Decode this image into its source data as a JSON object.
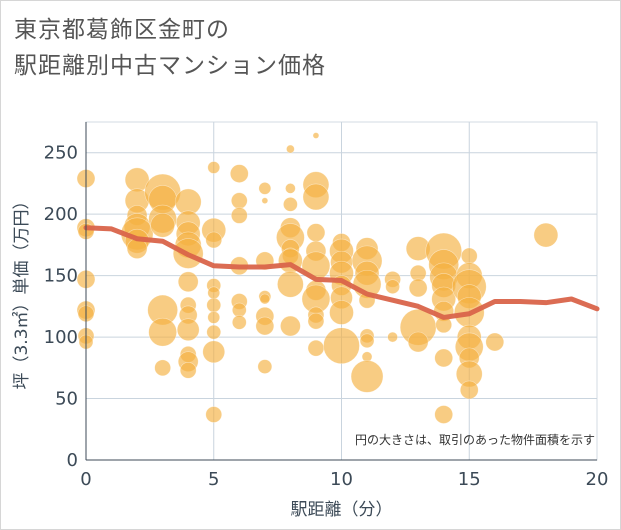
{
  "title_line1": "東京都葛飾区金町の",
  "title_line2": "駅距離別中古マンション価格",
  "chart_data": {
    "type": "scatter",
    "xlabel": "駅距離（分）",
    "ylabel": "坪（3.3㎡）単価（万円）",
    "xlim": [
      0,
      20
    ],
    "ylim": [
      0,
      275
    ],
    "xticks": [
      0,
      5,
      10,
      15,
      20
    ],
    "yticks": [
      0,
      50,
      100,
      150,
      200,
      250
    ],
    "grid": true,
    "annotation": "円の大きさは、取引のあった物件面積を示す",
    "bubble_color": "#f5b041",
    "line_color": "#d9644a",
    "points": [
      {
        "x": 0,
        "y": 229,
        "s": 9
      },
      {
        "x": 0,
        "y": 189,
        "s": 9
      },
      {
        "x": 0,
        "y": 186,
        "s": 8
      },
      {
        "x": 0,
        "y": 147,
        "s": 9
      },
      {
        "x": 0,
        "y": 122,
        "s": 9
      },
      {
        "x": 0,
        "y": 119,
        "s": 8
      },
      {
        "x": 0,
        "y": 101,
        "s": 8
      },
      {
        "x": 0,
        "y": 96,
        "s": 7
      },
      {
        "x": 2,
        "y": 228,
        "s": 12
      },
      {
        "x": 2,
        "y": 211,
        "s": 12
      },
      {
        "x": 2,
        "y": 199,
        "s": 10
      },
      {
        "x": 2,
        "y": 190,
        "s": 13
      },
      {
        "x": 2,
        "y": 184,
        "s": 16
      },
      {
        "x": 2,
        "y": 178,
        "s": 12
      },
      {
        "x": 2,
        "y": 172,
        "s": 10
      },
      {
        "x": 3,
        "y": 218,
        "s": 18
      },
      {
        "x": 3,
        "y": 212,
        "s": 14
      },
      {
        "x": 3,
        "y": 196,
        "s": 14
      },
      {
        "x": 3,
        "y": 191,
        "s": 12
      },
      {
        "x": 3,
        "y": 122,
        "s": 15
      },
      {
        "x": 3,
        "y": 104,
        "s": 14
      },
      {
        "x": 3,
        "y": 75,
        "s": 8
      },
      {
        "x": 4,
        "y": 210,
        "s": 13
      },
      {
        "x": 4,
        "y": 193,
        "s": 12
      },
      {
        "x": 4,
        "y": 184,
        "s": 12
      },
      {
        "x": 4,
        "y": 175,
        "s": 13
      },
      {
        "x": 4,
        "y": 168,
        "s": 15
      },
      {
        "x": 4,
        "y": 145,
        "s": 10
      },
      {
        "x": 4,
        "y": 126,
        "s": 8
      },
      {
        "x": 4,
        "y": 118,
        "s": 9
      },
      {
        "x": 4,
        "y": 106,
        "s": 11
      },
      {
        "x": 4,
        "y": 86,
        "s": 8
      },
      {
        "x": 4,
        "y": 80,
        "s": 10
      },
      {
        "x": 4,
        "y": 73,
        "s": 8
      },
      {
        "x": 5,
        "y": 238,
        "s": 6
      },
      {
        "x": 5,
        "y": 187,
        "s": 12
      },
      {
        "x": 5,
        "y": 179,
        "s": 8
      },
      {
        "x": 5,
        "y": 142,
        "s": 7
      },
      {
        "x": 5,
        "y": 136,
        "s": 6
      },
      {
        "x": 5,
        "y": 126,
        "s": 7
      },
      {
        "x": 5,
        "y": 116,
        "s": 6
      },
      {
        "x": 5,
        "y": 104,
        "s": 7
      },
      {
        "x": 5,
        "y": 88,
        "s": 11
      },
      {
        "x": 5,
        "y": 37,
        "s": 8
      },
      {
        "x": 6,
        "y": 233,
        "s": 9
      },
      {
        "x": 6,
        "y": 211,
        "s": 8
      },
      {
        "x": 6,
        "y": 199,
        "s": 8
      },
      {
        "x": 6,
        "y": 158,
        "s": 9
      },
      {
        "x": 6,
        "y": 129,
        "s": 8
      },
      {
        "x": 6,
        "y": 122,
        "s": 7
      },
      {
        "x": 6,
        "y": 112,
        "s": 7
      },
      {
        "x": 7,
        "y": 221,
        "s": 6
      },
      {
        "x": 7,
        "y": 211,
        "s": 3
      },
      {
        "x": 7,
        "y": 162,
        "s": 9
      },
      {
        "x": 7,
        "y": 133,
        "s": 6
      },
      {
        "x": 7,
        "y": 131,
        "s": 5
      },
      {
        "x": 7,
        "y": 117,
        "s": 9
      },
      {
        "x": 7,
        "y": 109,
        "s": 9
      },
      {
        "x": 7,
        "y": 76,
        "s": 7
      },
      {
        "x": 8,
        "y": 253,
        "s": 4
      },
      {
        "x": 8,
        "y": 221,
        "s": 5
      },
      {
        "x": 8,
        "y": 208,
        "s": 7
      },
      {
        "x": 8,
        "y": 189,
        "s": 10
      },
      {
        "x": 8,
        "y": 181,
        "s": 14
      },
      {
        "x": 8,
        "y": 172,
        "s": 9
      },
      {
        "x": 8,
        "y": 166,
        "s": 8
      },
      {
        "x": 8,
        "y": 162,
        "s": 12
      },
      {
        "x": 8,
        "y": 143,
        "s": 13
      },
      {
        "x": 8,
        "y": 109,
        "s": 10
      },
      {
        "x": 9,
        "y": 264,
        "s": 3
      },
      {
        "x": 9,
        "y": 224,
        "s": 13
      },
      {
        "x": 9,
        "y": 214,
        "s": 13
      },
      {
        "x": 9,
        "y": 185,
        "s": 9
      },
      {
        "x": 9,
        "y": 170,
        "s": 10
      },
      {
        "x": 9,
        "y": 158,
        "s": 14
      },
      {
        "x": 9,
        "y": 138,
        "s": 10
      },
      {
        "x": 9,
        "y": 131,
        "s": 14
      },
      {
        "x": 9,
        "y": 118,
        "s": 8
      },
      {
        "x": 9,
        "y": 113,
        "s": 8
      },
      {
        "x": 9,
        "y": 91,
        "s": 8
      },
      {
        "x": 10,
        "y": 177,
        "s": 9
      },
      {
        "x": 10,
        "y": 170,
        "s": 12
      },
      {
        "x": 10,
        "y": 161,
        "s": 11
      },
      {
        "x": 10,
        "y": 152,
        "s": 12
      },
      {
        "x": 10,
        "y": 142,
        "s": 10
      },
      {
        "x": 10,
        "y": 132,
        "s": 11
      },
      {
        "x": 10,
        "y": 120,
        "s": 12
      },
      {
        "x": 10,
        "y": 93,
        "s": 18
      },
      {
        "x": 11,
        "y": 172,
        "s": 11
      },
      {
        "x": 11,
        "y": 162,
        "s": 15
      },
      {
        "x": 11,
        "y": 152,
        "s": 12
      },
      {
        "x": 11,
        "y": 143,
        "s": 14
      },
      {
        "x": 11,
        "y": 130,
        "s": 8
      },
      {
        "x": 11,
        "y": 101,
        "s": 7
      },
      {
        "x": 11,
        "y": 97,
        "s": 7
      },
      {
        "x": 11,
        "y": 84,
        "s": 5
      },
      {
        "x": 11,
        "y": 68,
        "s": 16
      },
      {
        "x": 12,
        "y": 147,
        "s": 8
      },
      {
        "x": 12,
        "y": 141,
        "s": 7
      },
      {
        "x": 12,
        "y": 100,
        "s": 5
      },
      {
        "x": 13,
        "y": 172,
        "s": 12
      },
      {
        "x": 13,
        "y": 152,
        "s": 8
      },
      {
        "x": 13,
        "y": 140,
        "s": 9
      },
      {
        "x": 13,
        "y": 108,
        "s": 18
      },
      {
        "x": 13,
        "y": 96,
        "s": 10
      },
      {
        "x": 14,
        "y": 170,
        "s": 18
      },
      {
        "x": 14,
        "y": 159,
        "s": 15
      },
      {
        "x": 14,
        "y": 149,
        "s": 14
      },
      {
        "x": 14,
        "y": 142,
        "s": 12
      },
      {
        "x": 14,
        "y": 131,
        "s": 12
      },
      {
        "x": 14,
        "y": 121,
        "s": 10
      },
      {
        "x": 14,
        "y": 110,
        "s": 8
      },
      {
        "x": 14,
        "y": 83,
        "s": 9
      },
      {
        "x": 14,
        "y": 37,
        "s": 9
      },
      {
        "x": 15,
        "y": 166,
        "s": 8
      },
      {
        "x": 15,
        "y": 150,
        "s": 13
      },
      {
        "x": 15,
        "y": 141,
        "s": 17
      },
      {
        "x": 15,
        "y": 133,
        "s": 12
      },
      {
        "x": 15,
        "y": 120,
        "s": 15
      },
      {
        "x": 15,
        "y": 100,
        "s": 12
      },
      {
        "x": 15,
        "y": 92,
        "s": 14
      },
      {
        "x": 15,
        "y": 83,
        "s": 10
      },
      {
        "x": 15,
        "y": 70,
        "s": 13
      },
      {
        "x": 15,
        "y": 57,
        "s": 9
      },
      {
        "x": 16,
        "y": 96,
        "s": 9
      },
      {
        "x": 18,
        "y": 183,
        "s": 12
      }
    ],
    "trend": {
      "x": [
        0,
        1,
        2,
        3,
        4,
        5,
        6,
        7,
        8,
        9,
        10,
        11,
        12,
        13,
        14,
        15,
        16,
        17,
        18,
        19,
        20
      ],
      "y": [
        189,
        188,
        180,
        178,
        167,
        158,
        157,
        157,
        159,
        147,
        146,
        135,
        130,
        125,
        116,
        119,
        129,
        129,
        128,
        131,
        123
      ]
    }
  }
}
